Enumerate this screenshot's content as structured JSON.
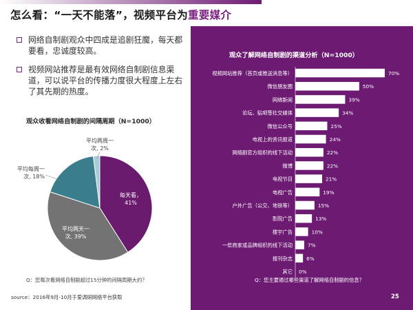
{
  "title": {
    "prefix": "怎么看：",
    "quote": "“一天不能落”",
    "middle": "，视频平台为",
    "highlight": "重要媒介"
  },
  "bullets": [
    "网络自制剧观众中四成是追剧狂魔，每天都要看，忠诚度较高。",
    "视频网站推荐是最有效网络自制剧信息渠道，可以说平台的传播力度很大程度上左右了其先期的热度。"
  ],
  "colors": {
    "purple": "#6d1a73",
    "title_highlight": "#7a1f7f",
    "pie_purple": "#6a1b6e",
    "pie_gray": "#737373",
    "pie_teal": "#3a7d8c",
    "pie_light_blue": "#a9cbd9",
    "bar_fill": "#ffffff"
  },
  "chart_data": [
    {
      "type": "pie",
      "title": "观众收看网络自制剧的间隔周期（N=1000）",
      "slices": [
        {
          "label": "每天看，",
          "value_label": "41%",
          "value": 41,
          "color": "#6a1b6e"
        },
        {
          "label": "平均两天一",
          "value_label": "次, 39%",
          "value": 39,
          "color": "#737373"
        },
        {
          "label": "平均每周一",
          "value_label": "次, 18%",
          "value": 18,
          "color": "#3a7d8c"
        },
        {
          "label": "平均两周一",
          "value_label": "次, 2%",
          "value": 2,
          "color": "#a9cbd9"
        }
      ],
      "question": "Q：您每次看网络自制剧超过15分钟的间隔周期大约？"
    },
    {
      "type": "bar",
      "orientation": "horizontal",
      "title": "观众了解网络自制剧的渠道分析（N=1000）",
      "categories": [
        "视频网站推荐（首页或推送消息等）",
        "微信朋友圈",
        "网络新闻",
        "论坛、贴吧等社交媒体",
        "微信公众号",
        "电视上的资讯报道",
        "网络剧官方组织的线下活动",
        "微博",
        "电视节目",
        "电视广告",
        "户外广告（公交、地铁等）",
        "影院广告",
        "楼宇广告",
        "一些商家或品牌组织的线下活动",
        "报刊杂志",
        "其它"
      ],
      "values": [
        70,
        50,
        39,
        34,
        25,
        24,
        22,
        22,
        21,
        19,
        15,
        13,
        10,
        7,
        6,
        0
      ],
      "value_labels": [
        "70%",
        "50%",
        "39%",
        "34%",
        "25%",
        "24%",
        "22%",
        "22%",
        "21%",
        "19%",
        "15%",
        "13%",
        "10%",
        "7%",
        "6%",
        "0%"
      ],
      "xlim": [
        0,
        70
      ],
      "question": "Q：您主要通过哪些渠道了解网络自制剧的信息？"
    }
  ],
  "source": "source：2016年9月-10月于爱调研网络平台获取",
  "page_number": "25"
}
